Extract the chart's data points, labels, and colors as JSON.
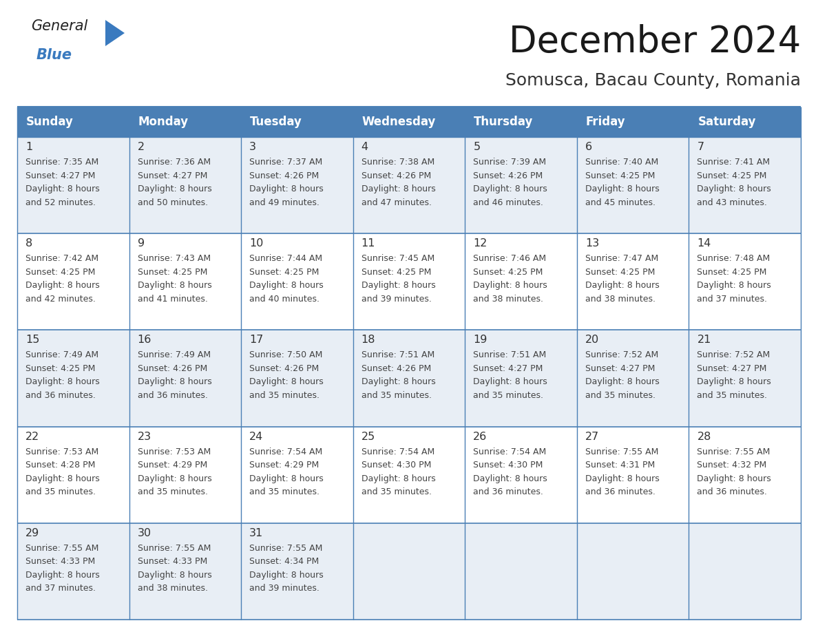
{
  "title": "December 2024",
  "subtitle": "Somusca, Bacau County, Romania",
  "days_of_week": [
    "Sunday",
    "Monday",
    "Tuesday",
    "Wednesday",
    "Thursday",
    "Friday",
    "Saturday"
  ],
  "header_color": "#4a7fb5",
  "header_text_color": "#ffffff",
  "row_bg_odd": "#e8eef5",
  "row_bg_even": "#ffffff",
  "border_color": "#4a7fb5",
  "day_num_color": "#333333",
  "text_color": "#444444",
  "calendar_data": [
    [
      {
        "day": 1,
        "sunrise": "7:35 AM",
        "sunset": "4:27 PM",
        "daylight_h": "8 hours",
        "daylight_m": "and 52 minutes."
      },
      {
        "day": 2,
        "sunrise": "7:36 AM",
        "sunset": "4:27 PM",
        "daylight_h": "8 hours",
        "daylight_m": "and 50 minutes."
      },
      {
        "day": 3,
        "sunrise": "7:37 AM",
        "sunset": "4:26 PM",
        "daylight_h": "8 hours",
        "daylight_m": "and 49 minutes."
      },
      {
        "day": 4,
        "sunrise": "7:38 AM",
        "sunset": "4:26 PM",
        "daylight_h": "8 hours",
        "daylight_m": "and 47 minutes."
      },
      {
        "day": 5,
        "sunrise": "7:39 AM",
        "sunset": "4:26 PM",
        "daylight_h": "8 hours",
        "daylight_m": "and 46 minutes."
      },
      {
        "day": 6,
        "sunrise": "7:40 AM",
        "sunset": "4:25 PM",
        "daylight_h": "8 hours",
        "daylight_m": "and 45 minutes."
      },
      {
        "day": 7,
        "sunrise": "7:41 AM",
        "sunset": "4:25 PM",
        "daylight_h": "8 hours",
        "daylight_m": "and 43 minutes."
      }
    ],
    [
      {
        "day": 8,
        "sunrise": "7:42 AM",
        "sunset": "4:25 PM",
        "daylight_h": "8 hours",
        "daylight_m": "and 42 minutes."
      },
      {
        "day": 9,
        "sunrise": "7:43 AM",
        "sunset": "4:25 PM",
        "daylight_h": "8 hours",
        "daylight_m": "and 41 minutes."
      },
      {
        "day": 10,
        "sunrise": "7:44 AM",
        "sunset": "4:25 PM",
        "daylight_h": "8 hours",
        "daylight_m": "and 40 minutes."
      },
      {
        "day": 11,
        "sunrise": "7:45 AM",
        "sunset": "4:25 PM",
        "daylight_h": "8 hours",
        "daylight_m": "and 39 minutes."
      },
      {
        "day": 12,
        "sunrise": "7:46 AM",
        "sunset": "4:25 PM",
        "daylight_h": "8 hours",
        "daylight_m": "and 38 minutes."
      },
      {
        "day": 13,
        "sunrise": "7:47 AM",
        "sunset": "4:25 PM",
        "daylight_h": "8 hours",
        "daylight_m": "and 38 minutes."
      },
      {
        "day": 14,
        "sunrise": "7:48 AM",
        "sunset": "4:25 PM",
        "daylight_h": "8 hours",
        "daylight_m": "and 37 minutes."
      }
    ],
    [
      {
        "day": 15,
        "sunrise": "7:49 AM",
        "sunset": "4:25 PM",
        "daylight_h": "8 hours",
        "daylight_m": "and 36 minutes."
      },
      {
        "day": 16,
        "sunrise": "7:49 AM",
        "sunset": "4:26 PM",
        "daylight_h": "8 hours",
        "daylight_m": "and 36 minutes."
      },
      {
        "day": 17,
        "sunrise": "7:50 AM",
        "sunset": "4:26 PM",
        "daylight_h": "8 hours",
        "daylight_m": "and 35 minutes."
      },
      {
        "day": 18,
        "sunrise": "7:51 AM",
        "sunset": "4:26 PM",
        "daylight_h": "8 hours",
        "daylight_m": "and 35 minutes."
      },
      {
        "day": 19,
        "sunrise": "7:51 AM",
        "sunset": "4:27 PM",
        "daylight_h": "8 hours",
        "daylight_m": "and 35 minutes."
      },
      {
        "day": 20,
        "sunrise": "7:52 AM",
        "sunset": "4:27 PM",
        "daylight_h": "8 hours",
        "daylight_m": "and 35 minutes."
      },
      {
        "day": 21,
        "sunrise": "7:52 AM",
        "sunset": "4:27 PM",
        "daylight_h": "8 hours",
        "daylight_m": "and 35 minutes."
      }
    ],
    [
      {
        "day": 22,
        "sunrise": "7:53 AM",
        "sunset": "4:28 PM",
        "daylight_h": "8 hours",
        "daylight_m": "and 35 minutes."
      },
      {
        "day": 23,
        "sunrise": "7:53 AM",
        "sunset": "4:29 PM",
        "daylight_h": "8 hours",
        "daylight_m": "and 35 minutes."
      },
      {
        "day": 24,
        "sunrise": "7:54 AM",
        "sunset": "4:29 PM",
        "daylight_h": "8 hours",
        "daylight_m": "and 35 minutes."
      },
      {
        "day": 25,
        "sunrise": "7:54 AM",
        "sunset": "4:30 PM",
        "daylight_h": "8 hours",
        "daylight_m": "and 35 minutes."
      },
      {
        "day": 26,
        "sunrise": "7:54 AM",
        "sunset": "4:30 PM",
        "daylight_h": "8 hours",
        "daylight_m": "and 36 minutes."
      },
      {
        "day": 27,
        "sunrise": "7:55 AM",
        "sunset": "4:31 PM",
        "daylight_h": "8 hours",
        "daylight_m": "and 36 minutes."
      },
      {
        "day": 28,
        "sunrise": "7:55 AM",
        "sunset": "4:32 PM",
        "daylight_h": "8 hours",
        "daylight_m": "and 36 minutes."
      }
    ],
    [
      {
        "day": 29,
        "sunrise": "7:55 AM",
        "sunset": "4:33 PM",
        "daylight_h": "8 hours",
        "daylight_m": "and 37 minutes."
      },
      {
        "day": 30,
        "sunrise": "7:55 AM",
        "sunset": "4:33 PM",
        "daylight_h": "8 hours",
        "daylight_m": "and 38 minutes."
      },
      {
        "day": 31,
        "sunrise": "7:55 AM",
        "sunset": "4:34 PM",
        "daylight_h": "8 hours",
        "daylight_m": "and 39 minutes."
      },
      null,
      null,
      null,
      null
    ]
  ],
  "logo_general_color": "#222222",
  "logo_blue_color": "#3a7abf",
  "logo_triangle_color": "#3a7abf"
}
